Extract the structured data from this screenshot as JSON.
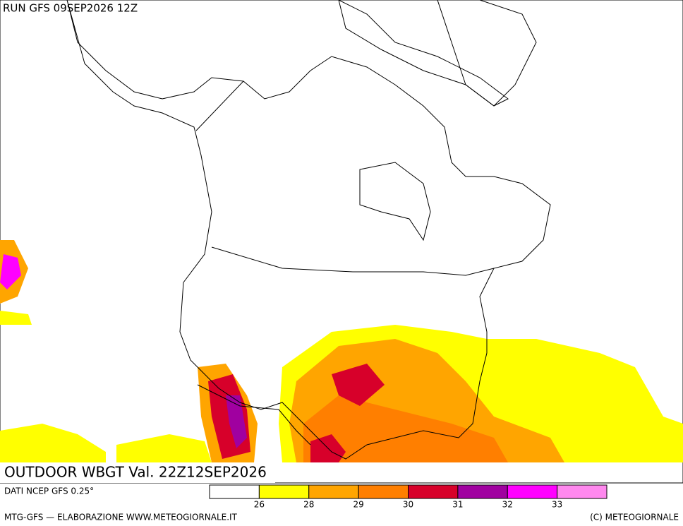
{
  "header": {
    "run": "RUN GFS 09SEP2026 12Z"
  },
  "map": {
    "title": "OUTDOOR WBGT Val. 22Z12SEP2026"
  },
  "legend": {
    "source": "DATI NCEP GFS 0.25°",
    "colors": [
      "#ffffff",
      "#ffff00",
      "#ffa500",
      "#ff7f00",
      "#d7002a",
      "#a000a0",
      "#ff00ff",
      "#ff88ee"
    ],
    "labels": [
      "26",
      "28",
      "29",
      "30",
      "31",
      "32",
      "33"
    ]
  },
  "footer": {
    "left": "MTG-GFS — ELABORAZIONE WWW.METEOGIORNALE.IT",
    "right": "(C) METEOGIORNALE"
  }
}
